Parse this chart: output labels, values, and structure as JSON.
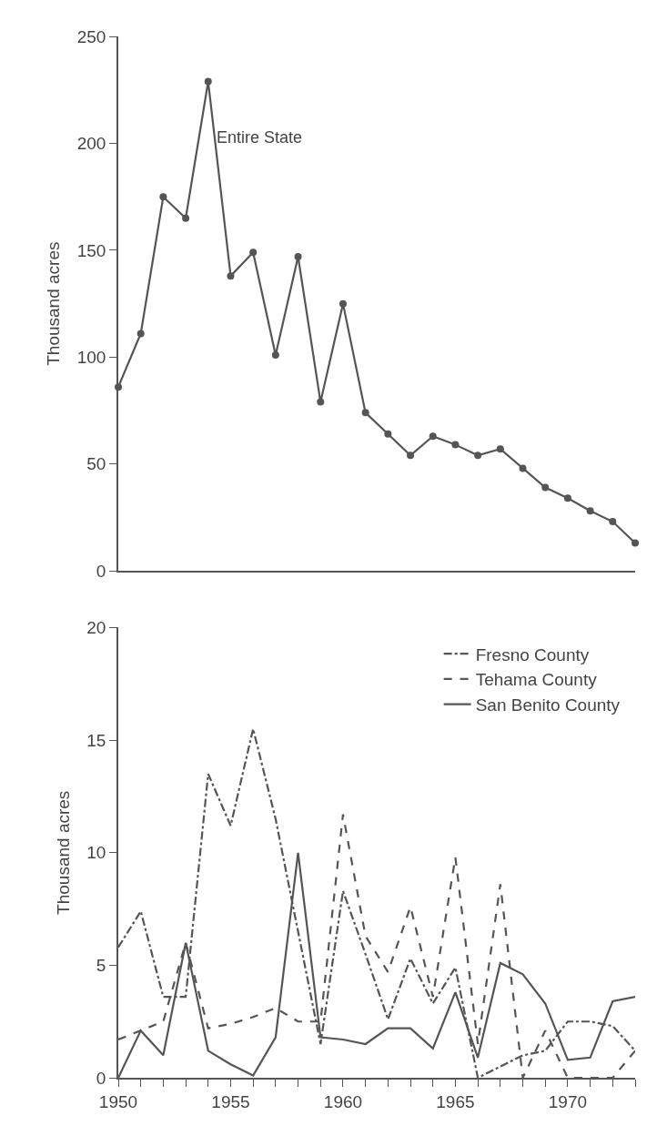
{
  "chart_data": [
    {
      "type": "line",
      "ylabel": "Thousand acres",
      "x": [
        1950,
        1951,
        1952,
        1953,
        1954,
        1955,
        1956,
        1957,
        1958,
        1959,
        1960,
        1961,
        1962,
        1963,
        1964,
        1965,
        1966,
        1967,
        1968,
        1969,
        1970,
        1971,
        1972,
        1973
      ],
      "series": [
        {
          "color": "#555555",
          "values": [
            86,
            111,
            175,
            165,
            229,
            138,
            149,
            101,
            147,
            79,
            125,
            74,
            64,
            54,
            63,
            59,
            54,
            57,
            48,
            39,
            34,
            28,
            23,
            13
          ]
        }
      ],
      "xlim": [
        1950,
        1973
      ],
      "ylim": [
        0,
        250
      ],
      "yticks": [
        0,
        50,
        100,
        150,
        200,
        250
      ],
      "tick_labels": "y",
      "marker": "circle",
      "legend": false,
      "annotations": [
        {
          "text": "Entire State",
          "x": 1954.3,
          "y": 203
        }
      ]
    },
    {
      "type": "line",
      "ylabel": "Thousand acres",
      "x": [
        1950,
        1951,
        1952,
        1953,
        1954,
        1955,
        1956,
        1957,
        1958,
        1959,
        1960,
        1961,
        1962,
        1963,
        1964,
        1965,
        1966,
        1967,
        1968,
        1969,
        1970,
        1971,
        1972,
        1973
      ],
      "series": [
        {
          "name": "Fresno County",
          "color": "#555555",
          "line_style": "dashdot",
          "values": [
            5.8,
            7.4,
            3.6,
            3.6,
            13.5,
            11.2,
            15.5,
            11.5,
            6.5,
            1.5,
            8.3,
            5.5,
            2.6,
            5.3,
            3.3,
            4.9,
            0,
            0.5,
            1.0,
            1.2,
            2.5,
            2.5,
            2.3,
            1.2
          ]
        },
        {
          "name": "Tehama County",
          "color": "#555555",
          "line_style": "dashed",
          "values": [
            1.7,
            2.1,
            2.5,
            6.0,
            2.2,
            2.4,
            2.7,
            3.1,
            2.5,
            2.5,
            11.7,
            6.3,
            4.7,
            7.6,
            3.6,
            9.8,
            1.5,
            8.6,
            0,
            2.1,
            0,
            0,
            0,
            1.2
          ]
        },
        {
          "name": "San Benito County",
          "color": "#555555",
          "line_style": "solid",
          "values": [
            0,
            2.1,
            1.0,
            6.0,
            1.2,
            0.6,
            0.1,
            1.8,
            10,
            1.8,
            1.7,
            1.5,
            2.2,
            2.2,
            1.3,
            3.8,
            0.9,
            5.1,
            4.6,
            3.3,
            0.8,
            0.9,
            3.4,
            3.6
          ]
        }
      ],
      "xlim": [
        1950,
        1973
      ],
      "xticks": [
        1950,
        {
          "value": 1951,
          "label": null
        },
        {
          "value": 1952,
          "label": null
        },
        {
          "value": 1953,
          "label": null
        },
        {
          "value": 1954,
          "label": null
        },
        1955,
        {
          "value": 1956,
          "label": null
        },
        {
          "value": 1957,
          "label": null
        },
        {
          "value": 1958,
          "label": null
        },
        {
          "value": 1959,
          "label": null
        },
        1960,
        {
          "value": 1961,
          "label": null
        },
        {
          "value": 1962,
          "label": null
        },
        {
          "value": 1963,
          "label": null
        },
        {
          "value": 1964,
          "label": null
        },
        1965,
        {
          "value": 1966,
          "label": null
        },
        {
          "value": 1967,
          "label": null
        },
        {
          "value": 1968,
          "label": null
        },
        {
          "value": 1969,
          "label": null
        },
        1970,
        {
          "value": 1971,
          "label": null
        },
        {
          "value": 1972,
          "label": null
        },
        {
          "value": 1973,
          "label": null
        }
      ],
      "ylim": [
        0,
        20
      ],
      "yticks": [
        0,
        5,
        10,
        15,
        20
      ],
      "marker": "none",
      "legend": "top right"
    }
  ]
}
